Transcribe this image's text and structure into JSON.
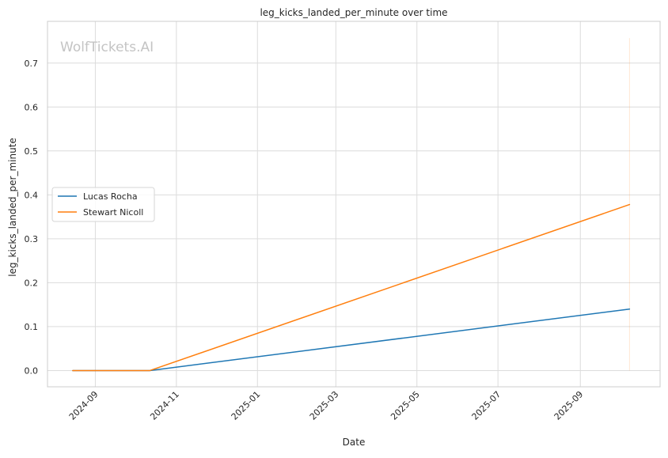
{
  "chart_data": {
    "type": "line",
    "title": "leg_kicks_landed_per_minute over time",
    "xlabel": "Date",
    "ylabel": "leg_kicks_landed_per_minute",
    "watermark": "WolfTickets.AI",
    "x_ticks": [
      "2024-09",
      "2024-11",
      "2025-01",
      "2025-03",
      "2025-05",
      "2025-07",
      "2025-09"
    ],
    "y_ticks": [
      "0.0",
      "0.1",
      "0.2",
      "0.3",
      "0.4",
      "0.5",
      "0.6",
      "0.7"
    ],
    "xlim": [
      "2024-07-27",
      "2025-10-31"
    ],
    "ylim": [
      -0.037,
      0.795
    ],
    "grid": true,
    "legend_position": "center-left",
    "series": [
      {
        "name": "Lucas Rocha",
        "color": "#1f77b4",
        "points": [
          {
            "x": "2024-08-15",
            "y": 0.0
          },
          {
            "x": "2024-10-12",
            "y": 0.0
          },
          {
            "x": "2025-10-08",
            "y": 0.14
          }
        ]
      },
      {
        "name": "Stewart Nicoll",
        "color": "#ff7f0e",
        "points": [
          {
            "x": "2024-08-15",
            "y": 0.0
          },
          {
            "x": "2024-10-12",
            "y": 0.0
          },
          {
            "x": "2025-10-08",
            "y": 0.378
          }
        ]
      }
    ],
    "reference_line": {
      "x": "2025-10-08",
      "y_from": 0.0,
      "y_to": 0.757,
      "color": "#ff7f0e"
    }
  }
}
